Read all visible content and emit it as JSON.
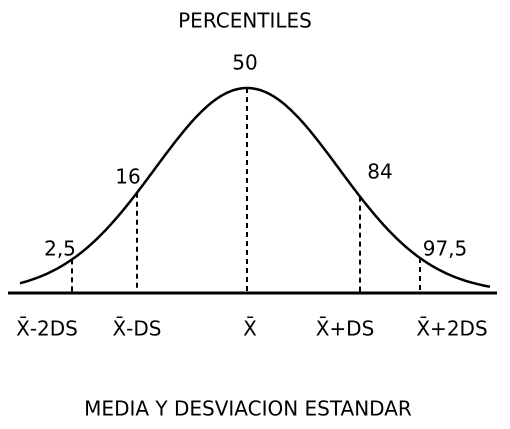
{
  "title": "PERCENTILES",
  "percentiles": [
    "2,5",
    "16",
    "50",
    "84",
    "97,5"
  ],
  "axis_labels": [
    "X̄-2DS",
    "X̄-DS",
    "X̄",
    "X̄+DS",
    "X̄+2DS"
  ],
  "footer": "MEDIA Y DESVIACION ESTANDAR"
}
